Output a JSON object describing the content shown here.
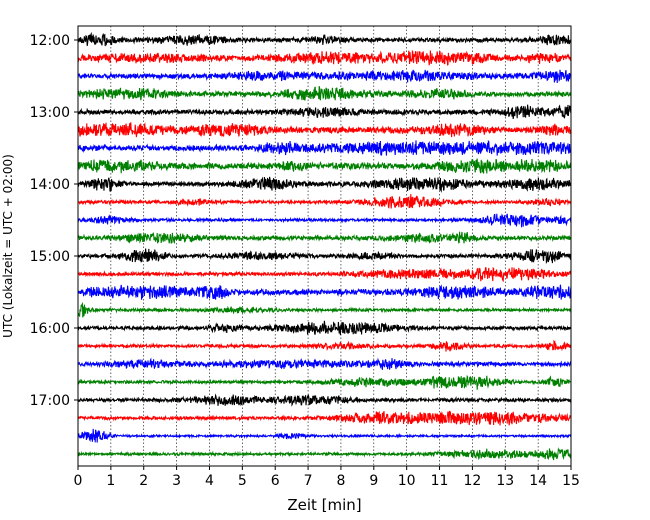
{
  "chart_data": {
    "type": "line",
    "xlabel": "Zeit  [min]",
    "ylabel": "UTC (Lokalzeit = UTC + 02:00)",
    "xlim": [
      0,
      15
    ],
    "x_ticks": [
      "0",
      "1",
      "2",
      "3",
      "4",
      "5",
      "6",
      "7",
      "8",
      "9",
      "10",
      "11",
      "12",
      "13",
      "14",
      "15"
    ],
    "y_ticks": [
      "12:00",
      "13:00",
      "14:00",
      "15:00",
      "16:00",
      "17:00"
    ],
    "y_tick_traces": [
      0,
      4,
      8,
      12,
      16,
      20
    ],
    "trace_interval_minutes": 15,
    "grid_x": true,
    "colors": [
      "#000000",
      "#ff0000",
      "#0000ff",
      "#008000"
    ],
    "traces": [
      {
        "start": "12:00",
        "color": "#000000",
        "base": 0.3,
        "bursts": [
          [
            0.6,
            0.5,
            0.7
          ],
          [
            3.5,
            1.0,
            0.5
          ],
          [
            7.5,
            0.6,
            0.4
          ],
          [
            14.6,
            0.5,
            0.7
          ]
        ]
      },
      {
        "start": "12:15",
        "color": "#ff0000",
        "base": 0.28,
        "bursts": [
          [
            2.0,
            2.0,
            0.5
          ],
          [
            7.5,
            1.5,
            0.7
          ],
          [
            11.0,
            1.5,
            1.0
          ],
          [
            14.2,
            0.6,
            0.6
          ]
        ]
      },
      {
        "start": "12:30",
        "color": "#0000ff",
        "base": 0.35,
        "bursts": [
          [
            6.0,
            1.5,
            0.4
          ],
          [
            10.0,
            2.0,
            0.5
          ],
          [
            14.6,
            0.6,
            0.6
          ]
        ]
      },
      {
        "start": "12:45",
        "color": "#008000",
        "base": 0.35,
        "bursts": [
          [
            1.5,
            1.2,
            0.6
          ],
          [
            7.5,
            1.2,
            0.7
          ],
          [
            11.0,
            1.0,
            0.4
          ]
        ]
      },
      {
        "start": "13:00",
        "color": "#000000",
        "base": 0.35,
        "bursts": [
          [
            7.5,
            1.0,
            0.4
          ],
          [
            13.5,
            0.6,
            0.7
          ],
          [
            14.8,
            0.4,
            0.6
          ]
        ]
      },
      {
        "start": "13:15",
        "color": "#ff0000",
        "base": 0.45,
        "bursts": [
          [
            1.0,
            1.8,
            0.6
          ],
          [
            4.6,
            0.8,
            1.0
          ],
          [
            11.5,
            0.8,
            0.9
          ],
          [
            14.5,
            0.4,
            0.5
          ]
        ]
      },
      {
        "start": "13:30",
        "color": "#0000ff",
        "base": 0.4,
        "bursts": [
          [
            6.2,
            0.5,
            0.7
          ],
          [
            10.0,
            2.5,
            0.7
          ],
          [
            13.8,
            1.5,
            0.8
          ]
        ]
      },
      {
        "start": "13:45",
        "color": "#008000",
        "base": 0.45,
        "bursts": [
          [
            1.2,
            0.8,
            1.0
          ],
          [
            6.5,
            0.4,
            0.5
          ],
          [
            12.0,
            0.8,
            0.9
          ],
          [
            14.0,
            0.8,
            0.8
          ]
        ]
      },
      {
        "start": "14:00",
        "color": "#000000",
        "base": 0.3,
        "bursts": [
          [
            0.8,
            0.4,
            0.9
          ],
          [
            5.8,
            0.8,
            0.7
          ],
          [
            10.5,
            1.5,
            0.8
          ],
          [
            14.0,
            1.0,
            0.8
          ]
        ]
      },
      {
        "start": "14:15",
        "color": "#ff0000",
        "base": 0.22,
        "bursts": [
          [
            3.5,
            0.5,
            0.3
          ],
          [
            10.0,
            1.2,
            0.8
          ],
          [
            14.3,
            0.5,
            0.4
          ]
        ]
      },
      {
        "start": "14:30",
        "color": "#0000ff",
        "base": 0.2,
        "bursts": [
          [
            1.0,
            0.6,
            0.4
          ],
          [
            13.2,
            0.9,
            0.9
          ],
          [
            14.8,
            0.3,
            0.5
          ]
        ]
      },
      {
        "start": "14:45",
        "color": "#008000",
        "base": 0.3,
        "bursts": [
          [
            2.5,
            1.2,
            0.5
          ],
          [
            10.5,
            0.8,
            0.4
          ],
          [
            11.7,
            0.3,
            0.6
          ]
        ]
      },
      {
        "start": "15:00",
        "color": "#000000",
        "base": 0.25,
        "bursts": [
          [
            2.0,
            0.6,
            0.9
          ],
          [
            5.5,
            1.0,
            0.4
          ],
          [
            9.0,
            0.6,
            0.4
          ],
          [
            14.0,
            0.8,
            0.9
          ]
        ]
      },
      {
        "start": "15:15",
        "color": "#ff0000",
        "base": 0.25,
        "bursts": [
          [
            10.0,
            1.5,
            0.5
          ],
          [
            13.0,
            1.5,
            0.8
          ]
        ]
      },
      {
        "start": "15:30",
        "color": "#0000ff",
        "base": 0.4,
        "bursts": [
          [
            1.8,
            1.3,
            0.9
          ],
          [
            4.1,
            0.4,
            0.9
          ],
          [
            11.5,
            1.2,
            0.7
          ],
          [
            14.4,
            0.7,
            0.9
          ]
        ]
      },
      {
        "start": "15:45",
        "color": "#008000",
        "base": 0.2,
        "bursts": [
          [
            0.1,
            0.2,
            1.0
          ],
          [
            5.0,
            0.8,
            0.3
          ]
        ]
      },
      {
        "start": "16:00",
        "color": "#000000",
        "base": 0.25,
        "bursts": [
          [
            7.8,
            1.6,
            1.0
          ],
          [
            4.5,
            0.5,
            0.4
          ]
        ]
      },
      {
        "start": "16:15",
        "color": "#ff0000",
        "base": 0.22,
        "bursts": [
          [
            8.0,
            0.8,
            0.3
          ],
          [
            11.3,
            0.5,
            0.6
          ],
          [
            14.5,
            0.4,
            0.5
          ]
        ]
      },
      {
        "start": "16:30",
        "color": "#0000ff",
        "base": 0.28,
        "bursts": [
          [
            2.0,
            1.0,
            0.4
          ],
          [
            6.5,
            2.5,
            0.4
          ],
          [
            9.5,
            0.5,
            0.5
          ]
        ]
      },
      {
        "start": "16:45",
        "color": "#008000",
        "base": 0.2,
        "bursts": [
          [
            9.0,
            1.5,
            0.5
          ],
          [
            11.8,
            1.0,
            0.9
          ],
          [
            14.5,
            0.3,
            0.6
          ],
          [
            10.9,
            0.1,
            1.0
          ]
        ]
      },
      {
        "start": "17:00",
        "color": "#000000",
        "base": 0.25,
        "bursts": [
          [
            4.5,
            1.0,
            0.6
          ],
          [
            7.0,
            1.2,
            0.5
          ]
        ]
      },
      {
        "start": "17:15",
        "color": "#ff0000",
        "base": 0.22,
        "bursts": [
          [
            12.0,
            2.5,
            0.9
          ],
          [
            9.0,
            1.2,
            0.5
          ]
        ]
      },
      {
        "start": "17:30",
        "color": "#0000ff",
        "base": 0.15,
        "bursts": [
          [
            0.5,
            0.4,
            0.9
          ],
          [
            6.5,
            0.4,
            0.3
          ]
        ]
      },
      {
        "start": "17:45",
        "color": "#008000",
        "base": 0.18,
        "bursts": [
          [
            12.5,
            1.5,
            0.5
          ],
          [
            14.6,
            0.5,
            0.7
          ]
        ]
      }
    ]
  }
}
